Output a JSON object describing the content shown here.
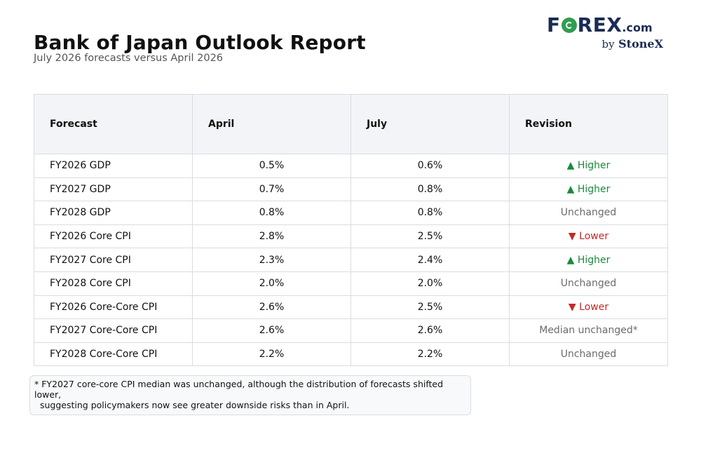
{
  "header": {
    "title": "Bank of Japan Outlook Report",
    "subtitle": "July 2026 forecasts versus April 2026"
  },
  "logo": {
    "part1": "F",
    "part2": "REX",
    "suffix": ".com",
    "by": "by",
    "brand": "StoneX",
    "brand_color": "#1b2b55",
    "coin_color": "#2f9e4f"
  },
  "chart_data": {
    "type": "table",
    "columns": [
      "Forecast",
      "April",
      "July",
      "Revision"
    ],
    "rows": [
      {
        "forecast": "FY2026 GDP",
        "april": "0.5%",
        "july": "0.6%",
        "revision": "▲ Higher",
        "direction": "up"
      },
      {
        "forecast": "FY2027 GDP",
        "april": "0.7%",
        "july": "0.8%",
        "revision": "▲ Higher",
        "direction": "up"
      },
      {
        "forecast": "FY2028 GDP",
        "april": "0.8%",
        "july": "0.8%",
        "revision": "Unchanged",
        "direction": "same"
      },
      {
        "forecast": "FY2026 Core CPI",
        "april": "2.8%",
        "july": "2.5%",
        "revision": "▼ Lower",
        "direction": "down"
      },
      {
        "forecast": "FY2027 Core CPI",
        "april": "2.3%",
        "july": "2.4%",
        "revision": "▲ Higher",
        "direction": "up"
      },
      {
        "forecast": "FY2028 Core CPI",
        "april": "2.0%",
        "july": "2.0%",
        "revision": "Unchanged",
        "direction": "same"
      },
      {
        "forecast": "FY2026 Core-Core CPI",
        "april": "2.6%",
        "july": "2.5%",
        "revision": "▼ Lower",
        "direction": "down"
      },
      {
        "forecast": "FY2027 Core-Core CPI",
        "april": "2.6%",
        "july": "2.6%",
        "revision": "Median unchanged*",
        "direction": "same"
      },
      {
        "forecast": "FY2028 Core-Core CPI",
        "april": "2.2%",
        "july": "2.2%",
        "revision": "Unchanged",
        "direction": "same"
      }
    ],
    "colors": {
      "up": "#1a8a3c",
      "down": "#c62828",
      "same": "#6b6b6b",
      "header_bg": "#f3f4f8",
      "border": "#d9dce3"
    }
  },
  "footnote": {
    "line1": "* FY2027 core-core CPI median was unchanged, although the distribution of forecasts shifted lower,",
    "line2": "suggesting policymakers now see greater downside risks than in April."
  }
}
